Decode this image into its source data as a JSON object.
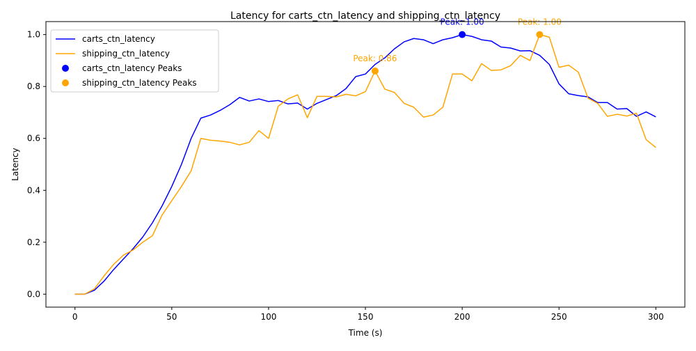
{
  "chart_data": {
    "type": "line",
    "title": "Latency for carts_ctn_latency and shipping_ctn_latency",
    "xlabel": "Time (s)",
    "ylabel": "Latency",
    "xlim": [
      -15,
      315
    ],
    "ylim": [
      -0.05,
      1.05
    ],
    "xticks": [
      0,
      50,
      100,
      150,
      200,
      250,
      300
    ],
    "yticks": [
      0.0,
      0.2,
      0.4,
      0.6,
      0.8,
      1.0
    ],
    "xtick_labels": [
      "0",
      "50",
      "100",
      "150",
      "200",
      "250",
      "300"
    ],
    "ytick_labels": [
      "0.0",
      "0.2",
      "0.4",
      "0.6",
      "0.8",
      "1.0"
    ],
    "grid": false,
    "legend_position": "upper left",
    "x": [
      0,
      5,
      10,
      15,
      20,
      25,
      30,
      35,
      40,
      45,
      50,
      55,
      60,
      65,
      70,
      75,
      80,
      85,
      90,
      95,
      100,
      105,
      110,
      115,
      120,
      125,
      130,
      135,
      140,
      145,
      150,
      155,
      160,
      165,
      170,
      175,
      180,
      185,
      190,
      195,
      200,
      205,
      210,
      215,
      220,
      225,
      230,
      235,
      240,
      245,
      250,
      255,
      260,
      265,
      270,
      275,
      280,
      285,
      290,
      295,
      300
    ],
    "series": [
      {
        "name": "carts_ctn_latency",
        "color": "#0000ff",
        "values": [
          0.0,
          0.0,
          0.015,
          0.05,
          0.095,
          0.135,
          0.175,
          0.22,
          0.275,
          0.34,
          0.415,
          0.5,
          0.6,
          0.678,
          0.69,
          0.708,
          0.73,
          0.758,
          0.744,
          0.752,
          0.742,
          0.746,
          0.733,
          0.736,
          0.713,
          0.735,
          0.75,
          0.765,
          0.792,
          0.838,
          0.848,
          0.885,
          0.91,
          0.945,
          0.972,
          0.985,
          0.98,
          0.965,
          0.98,
          0.988,
          1.0,
          0.993,
          0.98,
          0.975,
          0.952,
          0.948,
          0.937,
          0.938,
          0.92,
          0.885,
          0.81,
          0.772,
          0.765,
          0.76,
          0.738,
          0.738,
          0.713,
          0.715,
          0.685,
          0.702,
          0.683
        ]
      },
      {
        "name": "shipping_ctn_latency",
        "color": "#ffa500",
        "values": [
          0.0,
          0.0,
          0.02,
          0.07,
          0.115,
          0.15,
          0.17,
          0.2,
          0.225,
          0.305,
          0.36,
          0.415,
          0.475,
          0.6,
          0.593,
          0.59,
          0.585,
          0.575,
          0.585,
          0.63,
          0.6,
          0.724,
          0.752,
          0.768,
          0.68,
          0.762,
          0.762,
          0.76,
          0.77,
          0.764,
          0.78,
          0.86,
          0.79,
          0.777,
          0.735,
          0.72,
          0.682,
          0.69,
          0.72,
          0.848,
          0.848,
          0.822,
          0.888,
          0.862,
          0.864,
          0.88,
          0.92,
          0.9,
          1.0,
          0.99,
          0.874,
          0.882,
          0.855,
          0.755,
          0.735,
          0.685,
          0.693,
          0.686,
          0.697,
          0.595,
          0.565
        ]
      }
    ],
    "peaks": [
      {
        "name": "carts_ctn_latency Peaks",
        "color": "#0000ff",
        "x": 200,
        "y": 1.0,
        "label": "Peak: 1.00"
      },
      {
        "name": "shipping_ctn_latency Peaks",
        "color": "#ffa500",
        "x": 155,
        "y": 0.86,
        "label": "Peak: 0.86"
      },
      {
        "name": "shipping_ctn_latency Peaks",
        "color": "#ffa500",
        "x": 240,
        "y": 1.0,
        "label": "Peak: 1.00"
      }
    ],
    "legend": [
      {
        "label": "carts_ctn_latency",
        "kind": "line",
        "color": "#0000ff"
      },
      {
        "label": "shipping_ctn_latency",
        "kind": "line",
        "color": "#ffa500"
      },
      {
        "label": "carts_ctn_latency Peaks",
        "kind": "marker",
        "color": "#0000ff"
      },
      {
        "label": "shipping_ctn_latency Peaks",
        "kind": "marker",
        "color": "#ffa500"
      }
    ]
  }
}
